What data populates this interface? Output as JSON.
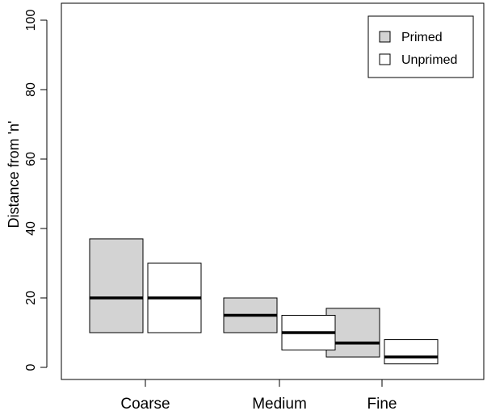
{
  "chart_data": {
    "type": "boxplot",
    "title": "",
    "xlabel": "",
    "ylabel": "Distance from 'n'",
    "ylim": [
      0,
      100
    ],
    "yticks": [
      0,
      20,
      40,
      60,
      80,
      100
    ],
    "categories": [
      "Coarse",
      "Medium",
      "Fine"
    ],
    "grid": false,
    "legend_position": "top-right",
    "series": [
      {
        "name": "Primed",
        "color": "#d3d3d3",
        "boxes": [
          {
            "q1": 10,
            "median": 20,
            "q3": 37
          },
          {
            "q1": 10,
            "median": 15,
            "q3": 20
          },
          {
            "q1": 3,
            "median": 7,
            "q3": 17
          }
        ]
      },
      {
        "name": "Unprimed",
        "color": "#ffffff",
        "boxes": [
          {
            "q1": 10,
            "median": 20,
            "q3": 30
          },
          {
            "q1": 5,
            "median": 10,
            "q3": 15
          },
          {
            "q1": 1,
            "median": 3,
            "q3": 8
          }
        ]
      }
    ]
  }
}
